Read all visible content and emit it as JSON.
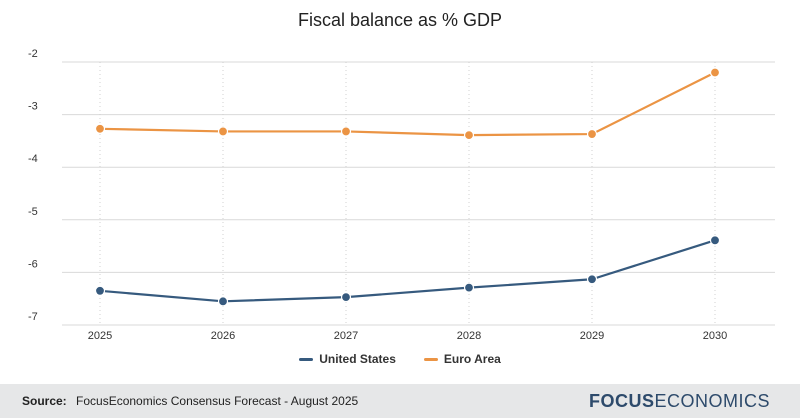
{
  "chart_data": {
    "type": "line",
    "title": "Fiscal balance as % GDP",
    "x": [
      "2025",
      "2026",
      "2027",
      "2028",
      "2029",
      "2030"
    ],
    "ylim": [
      -7,
      -2
    ],
    "yticks": [
      -2,
      -3,
      -4,
      -5,
      -6,
      -7
    ],
    "series": [
      {
        "name": "United States",
        "color": "#365a7e",
        "values": [
          -6.35,
          -6.55,
          -6.47,
          -6.29,
          -6.13,
          -5.39
        ]
      },
      {
        "name": "Euro Area",
        "color": "#eb9444",
        "values": [
          -3.27,
          -3.32,
          -3.32,
          -3.39,
          -3.37,
          -2.2
        ]
      }
    ],
    "xlabel": "",
    "ylabel": "",
    "legend_position": "bottom-center"
  },
  "footer": {
    "source_label": "Source:",
    "source_text": "FocusEconomics Consensus Forecast - August 2025",
    "brand_part1": "FOCUS",
    "brand_part2": "ECONOMICS"
  }
}
